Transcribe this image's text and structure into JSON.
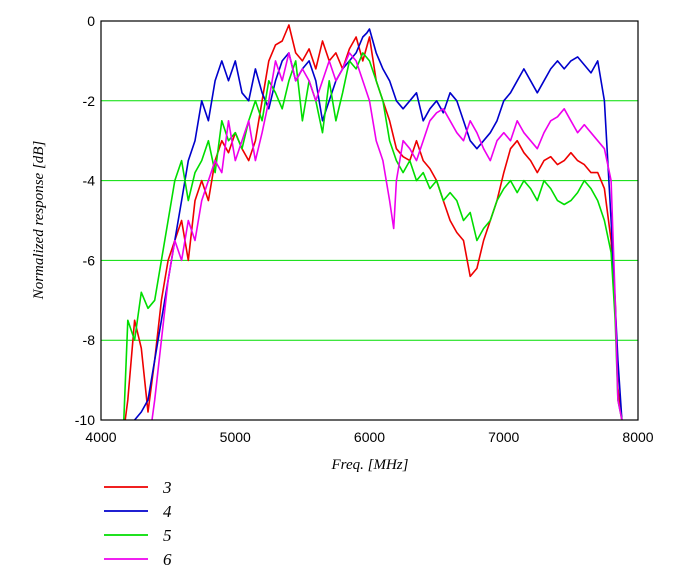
{
  "chart_data": {
    "type": "line",
    "title": "",
    "xlabel": "Freq. [MHz]",
    "ylabel": "Normalized response [dB]",
    "xlim": [
      4000,
      8000
    ],
    "ylim": [
      -10,
      0
    ],
    "x_ticks": [
      "4000",
      "5000",
      "6000",
      "7000",
      "8000"
    ],
    "y_ticks": [
      "0",
      "-2",
      "-4",
      "-6",
      "-8",
      "-10"
    ],
    "grid": "horizontal",
    "grid_color": "#00dd00",
    "legend_position": "below-left",
    "series": [
      {
        "name": "3",
        "color": "#ee0000",
        "x": [
          4180,
          4200,
          4250,
          4300,
          4350,
          4400,
          4450,
          4500,
          4550,
          4600,
          4650,
          4700,
          4750,
          4800,
          4850,
          4900,
          4950,
          5000,
          5050,
          5100,
          5150,
          5200,
          5250,
          5300,
          5350,
          5400,
          5450,
          5500,
          5550,
          5600,
          5650,
          5700,
          5750,
          5800,
          5850,
          5900,
          5950,
          6000,
          6050,
          6100,
          6150,
          6200,
          6250,
          6300,
          6350,
          6400,
          6450,
          6500,
          6550,
          6600,
          6650,
          6700,
          6750,
          6800,
          6850,
          6900,
          6950,
          7000,
          7050,
          7100,
          7150,
          7200,
          7250,
          7300,
          7350,
          7400,
          7450,
          7500,
          7550,
          7600,
          7650,
          7700,
          7750,
          7800,
          7830,
          7850,
          7880
        ],
        "y": [
          -10,
          -9.5,
          -7.5,
          -8.2,
          -9.8,
          -8.5,
          -7.0,
          -6.0,
          -5.5,
          -5.0,
          -6.0,
          -4.5,
          -4.0,
          -4.5,
          -3.5,
          -3.0,
          -3.3,
          -2.8,
          -3.2,
          -3.5,
          -3.0,
          -2.0,
          -1.0,
          -0.6,
          -0.5,
          -0.1,
          -0.8,
          -1.0,
          -0.7,
          -1.2,
          -0.5,
          -1.0,
          -0.8,
          -1.2,
          -0.7,
          -0.4,
          -1.0,
          -0.4,
          -1.5,
          -2.0,
          -2.5,
          -3.2,
          -3.4,
          -3.5,
          -3.0,
          -3.5,
          -3.7,
          -4.0,
          -4.5,
          -5.0,
          -5.3,
          -5.5,
          -6.4,
          -6.2,
          -5.5,
          -5.0,
          -4.5,
          -3.8,
          -3.2,
          -3.0,
          -3.3,
          -3.5,
          -3.8,
          -3.5,
          -3.4,
          -3.6,
          -3.5,
          -3.3,
          -3.5,
          -3.6,
          -3.8,
          -3.8,
          -4.2,
          -5.5,
          -7.0,
          -9.2,
          -10
        ]
      },
      {
        "name": "4",
        "color": "#0000cc",
        "x": [
          4250,
          4300,
          4350,
          4400,
          4450,
          4500,
          4550,
          4600,
          4650,
          4700,
          4750,
          4800,
          4850,
          4900,
          4950,
          5000,
          5050,
          5100,
          5150,
          5200,
          5250,
          5300,
          5350,
          5400,
          5450,
          5500,
          5550,
          5600,
          5650,
          5700,
          5750,
          5800,
          5850,
          5900,
          5950,
          5980,
          6000,
          6050,
          6100,
          6150,
          6200,
          6250,
          6300,
          6350,
          6400,
          6450,
          6500,
          6550,
          6600,
          6650,
          6700,
          6750,
          6800,
          6850,
          6900,
          6950,
          7000,
          7050,
          7100,
          7150,
          7200,
          7250,
          7300,
          7350,
          7400,
          7450,
          7500,
          7550,
          7600,
          7650,
          7700,
          7750,
          7800,
          7850,
          7880
        ],
        "y": [
          -10,
          -9.8,
          -9.5,
          -8.5,
          -7.5,
          -6.5,
          -5.5,
          -4.5,
          -3.5,
          -3.0,
          -2.0,
          -2.5,
          -1.5,
          -1.0,
          -1.5,
          -1.0,
          -1.8,
          -2.0,
          -1.2,
          -1.8,
          -2.2,
          -1.5,
          -1.0,
          -0.8,
          -1.5,
          -1.2,
          -1.0,
          -1.5,
          -2.5,
          -2.0,
          -1.5,
          -1.2,
          -1.0,
          -0.8,
          -0.4,
          -0.3,
          -0.2,
          -0.8,
          -1.2,
          -1.5,
          -2.0,
          -2.2,
          -2.0,
          -1.8,
          -2.5,
          -2.2,
          -2.0,
          -2.3,
          -1.8,
          -2.0,
          -2.5,
          -3.0,
          -3.2,
          -3.0,
          -2.8,
          -2.5,
          -2.0,
          -1.8,
          -1.5,
          -1.2,
          -1.5,
          -1.8,
          -1.5,
          -1.2,
          -1.0,
          -1.2,
          -1.0,
          -0.9,
          -1.1,
          -1.3,
          -1.0,
          -2.0,
          -5.0,
          -8.5,
          -10
        ]
      },
      {
        "name": "5",
        "color": "#00dd00",
        "x": [
          4170,
          4200,
          4250,
          4300,
          4350,
          4400,
          4450,
          4500,
          4550,
          4600,
          4650,
          4700,
          4750,
          4800,
          4850,
          4900,
          4950,
          5000,
          5050,
          5100,
          5150,
          5200,
          5250,
          5300,
          5350,
          5400,
          5450,
          5500,
          5550,
          5600,
          5650,
          5700,
          5750,
          5800,
          5850,
          5900,
          5950,
          6000,
          6050,
          6100,
          6150,
          6200,
          6250,
          6300,
          6350,
          6400,
          6450,
          6500,
          6550,
          6600,
          6650,
          6700,
          6750,
          6800,
          6850,
          6900,
          6950,
          7000,
          7050,
          7100,
          7150,
          7200,
          7250,
          7300,
          7350,
          7400,
          7450,
          7500,
          7550,
          7600,
          7650,
          7700,
          7750,
          7800,
          7830,
          7850,
          7880
        ],
        "y": [
          -10,
          -7.5,
          -8.0,
          -6.8,
          -7.2,
          -7.0,
          -6.0,
          -5.0,
          -4.0,
          -3.5,
          -4.5,
          -3.8,
          -3.5,
          -3.0,
          -3.8,
          -2.5,
          -3.0,
          -2.8,
          -3.2,
          -2.5,
          -2.0,
          -2.5,
          -1.5,
          -1.8,
          -2.2,
          -1.5,
          -1.0,
          -2.5,
          -1.5,
          -2.0,
          -2.8,
          -1.5,
          -2.5,
          -1.8,
          -1.0,
          -1.2,
          -0.8,
          -1.0,
          -1.5,
          -2.0,
          -3.0,
          -3.5,
          -3.8,
          -3.5,
          -4.0,
          -3.8,
          -4.2,
          -4.0,
          -4.5,
          -4.3,
          -4.5,
          -5.0,
          -4.8,
          -5.5,
          -5.2,
          -5.0,
          -4.5,
          -4.2,
          -4.0,
          -4.3,
          -4.0,
          -4.2,
          -4.5,
          -4.0,
          -4.2,
          -4.5,
          -4.6,
          -4.5,
          -4.3,
          -4.0,
          -4.2,
          -4.5,
          -5.0,
          -5.8,
          -7.5,
          -9.5,
          -10
        ]
      },
      {
        "name": "6",
        "color": "#ee00ee",
        "x": [
          4380,
          4400,
          4450,
          4500,
          4550,
          4600,
          4650,
          4700,
          4750,
          4800,
          4850,
          4900,
          4950,
          5000,
          5050,
          5100,
          5150,
          5200,
          5250,
          5300,
          5350,
          5400,
          5450,
          5500,
          5550,
          5600,
          5650,
          5700,
          5750,
          5800,
          5850,
          5900,
          5950,
          6000,
          6050,
          6100,
          6150,
          6180,
          6200,
          6250,
          6300,
          6350,
          6400,
          6450,
          6500,
          6550,
          6600,
          6650,
          6700,
          6750,
          6800,
          6850,
          6900,
          6950,
          7000,
          7050,
          7100,
          7150,
          7200,
          7250,
          7300,
          7350,
          7400,
          7450,
          7500,
          7550,
          7600,
          7650,
          7700,
          7750,
          7800,
          7830,
          7850,
          7880
        ],
        "y": [
          -10,
          -9.5,
          -8.0,
          -6.5,
          -5.5,
          -6.0,
          -5.0,
          -5.5,
          -4.5,
          -4.0,
          -3.5,
          -3.8,
          -2.5,
          -3.5,
          -3.0,
          -2.5,
          -3.5,
          -2.8,
          -2.0,
          -1.0,
          -1.5,
          -0.8,
          -1.5,
          -1.2,
          -1.5,
          -2.0,
          -1.5,
          -1.0,
          -1.5,
          -1.2,
          -0.8,
          -1.0,
          -1.5,
          -2.0,
          -3.0,
          -3.5,
          -4.5,
          -5.2,
          -4.0,
          -3.0,
          -3.2,
          -3.5,
          -3.0,
          -2.5,
          -2.3,
          -2.2,
          -2.5,
          -2.8,
          -3.0,
          -2.5,
          -2.8,
          -3.2,
          -3.5,
          -3.0,
          -2.8,
          -3.0,
          -2.5,
          -2.8,
          -3.0,
          -3.2,
          -2.8,
          -2.5,
          -2.4,
          -2.2,
          -2.5,
          -2.8,
          -2.6,
          -2.8,
          -3.0,
          -3.2,
          -4.0,
          -7.0,
          -9.5,
          -10
        ]
      }
    ]
  }
}
